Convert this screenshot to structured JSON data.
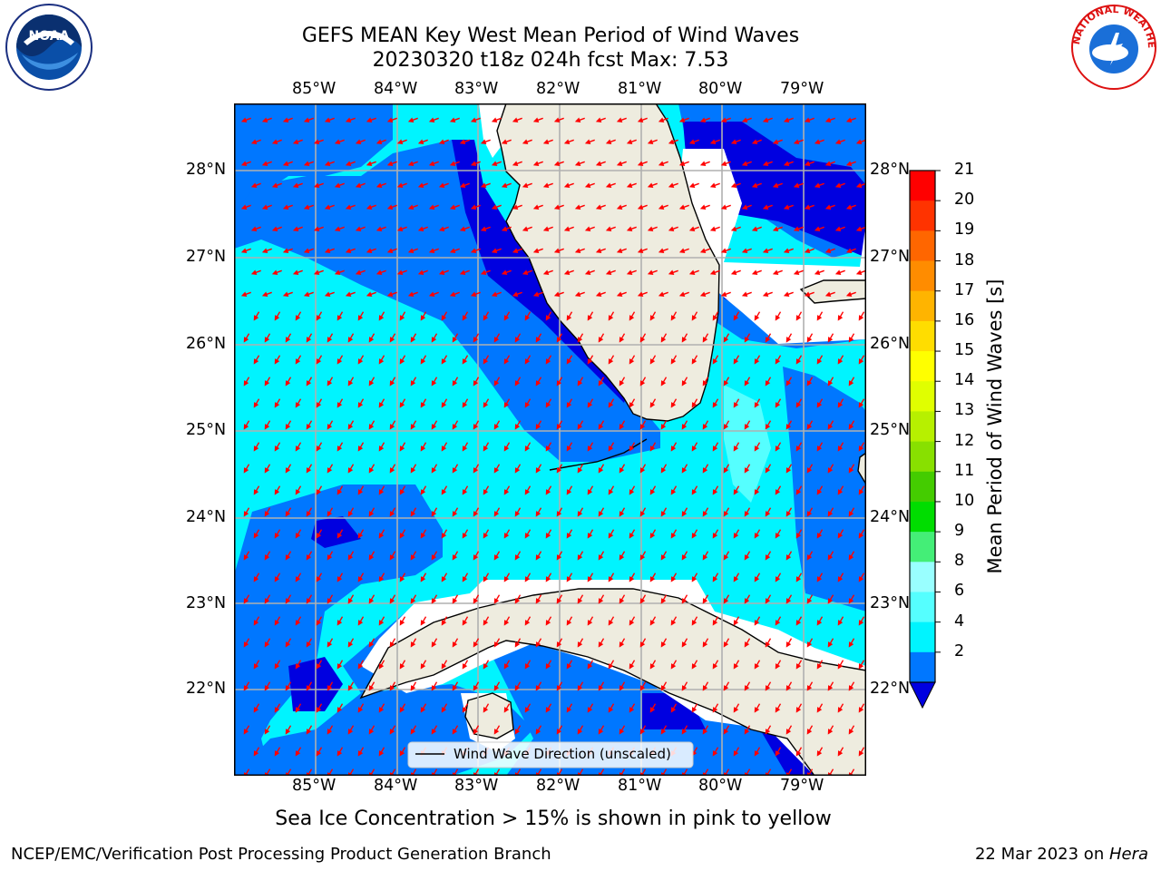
{
  "header": {
    "title_line1": "GEFS MEAN Key West Mean Period of Wind Waves",
    "title_line2": "20230320 t18z 024h fcst   Max: 7.53"
  },
  "axes": {
    "lon_labels": [
      "85°W",
      "84°W",
      "83°W",
      "82°W",
      "81°W",
      "80°W",
      "79°W"
    ],
    "lat_labels": [
      "28°N",
      "27°N",
      "26°N",
      "25°N",
      "24°N",
      "23°N",
      "22°N"
    ]
  },
  "legend": {
    "label": "Wind Wave Direction (unscaled)"
  },
  "colorbar": {
    "label": "Mean Period of Wind Waves [s]",
    "ticks": [
      "21",
      "20",
      "19",
      "18",
      "17",
      "16",
      "15",
      "14",
      "13",
      "12",
      "11",
      "10",
      "9",
      "8",
      "6",
      "4",
      "2"
    ],
    "colors": [
      "#ff0000",
      "#ff3300",
      "#ff6600",
      "#ff8c00",
      "#ffb400",
      "#ffdd00",
      "#ffff00",
      "#e0ff00",
      "#b7f000",
      "#88e000",
      "#44cc00",
      "#00dd00",
      "#44ee77",
      "#99ffff",
      "#55ffff",
      "#00f4ff",
      "#0077ff"
    ],
    "extend_color": "#0000e0"
  },
  "colors": {
    "land": "#eeecdf",
    "period_4_6": "#00f4ff",
    "period_2_4": "#0077ff",
    "period_lt_2": "#0000e0",
    "period_6_8": "#55ffff",
    "arrow": "#ff0000",
    "grid": "#b0b0b0"
  },
  "footnote": "Sea Ice Concentration > 15% is shown in pink to yellow",
  "credit_left": "NCEP/EMC/Verification Post Processing Product Generation Branch",
  "credit_right": {
    "date": "22 Mar 2023 on ",
    "host": "Hera"
  },
  "logos": {
    "left": "NOAA",
    "right": "NATIONAL WEATHER SERVICE"
  }
}
